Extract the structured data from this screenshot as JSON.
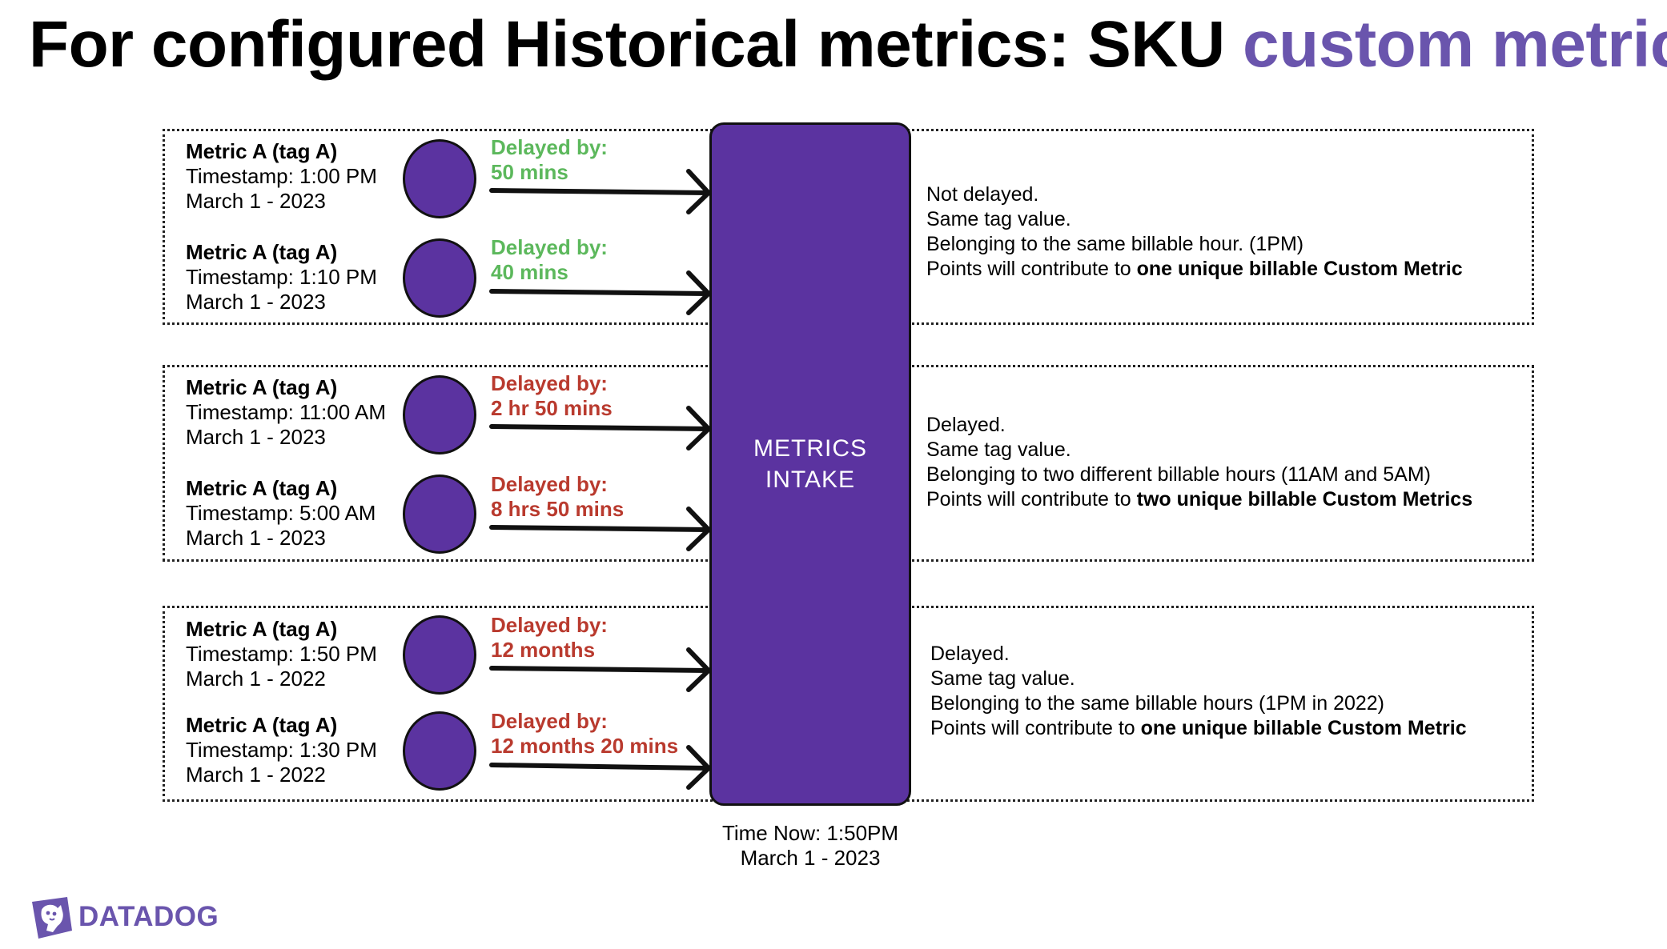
{
  "title": {
    "main": "For configured Historical metrics: SKU",
    "accent": "custom metrics"
  },
  "groups": [
    {
      "metrics": [
        {
          "name": "Metric A (tag A)",
          "timestamp": "Timestamp: 1:00 PM",
          "date": "March 1 - 2023",
          "delay_label": "Delayed by:",
          "delay_value": "50 mins"
        },
        {
          "name": "Metric A (tag A)",
          "timestamp": "Timestamp: 1:10 PM",
          "date": "March 1 - 2023",
          "delay_label": "Delayed by:",
          "delay_value": "40 mins"
        }
      ],
      "description": {
        "line1": "Not delayed.",
        "line2": "Same tag value.",
        "line3": "Belonging to the same billable hour. (1PM)",
        "line4_prefix": "Points will contribute to ",
        "line4_bold": "one unique billable Custom Metric"
      }
    },
    {
      "metrics": [
        {
          "name": "Metric A (tag A)",
          "timestamp": "Timestamp: 11:00 AM",
          "date": "March 1 - 2023",
          "delay_label": "Delayed by:",
          "delay_value": "2 hr 50 mins"
        },
        {
          "name": "Metric A (tag A)",
          "timestamp": "Timestamp: 5:00 AM",
          "date": "March 1 - 2023",
          "delay_label": "Delayed by:",
          "delay_value": "8 hrs 50 mins"
        }
      ],
      "description": {
        "line1": "Delayed.",
        "line2": "Same tag value.",
        "line3": "Belonging to two different billable hours (11AM and 5AM)",
        "line4_prefix": "Points will contribute to ",
        "line4_bold": "two unique billable Custom Metrics"
      }
    },
    {
      "metrics": [
        {
          "name": "Metric A (tag A)",
          "timestamp": "Timestamp: 1:50 PM",
          "date": "March 1 - 2022",
          "delay_label": "Delayed by:",
          "delay_value": "12 months"
        },
        {
          "name": "Metric A (tag A)",
          "timestamp": "Timestamp: 1:30 PM",
          "date": "March 1 - 2022",
          "delay_label": "Delayed by:",
          "delay_value": "12 months 20 mins"
        }
      ],
      "description": {
        "line1": "Delayed.",
        "line2": "Same tag value.",
        "line3": "Belonging to the same billable hours (1PM in 2022)",
        "line4_prefix": "Points will contribute to ",
        "line4_bold": "one unique billable Custom Metric"
      }
    }
  ],
  "intake": {
    "line1": "METRICS",
    "line2": "INTAKE"
  },
  "time_now": {
    "line1": "Time Now: 1:50PM",
    "line2": "March 1 - 2023"
  },
  "logo": {
    "text": "DATADOG",
    "icon": "datadog-dog-icon"
  },
  "colors": {
    "accent": "#6a55ad",
    "dot": "#5b33a0",
    "intake": "#5b33a0",
    "not_delayed": "#5cb85c",
    "delayed": "#b93a2e"
  }
}
